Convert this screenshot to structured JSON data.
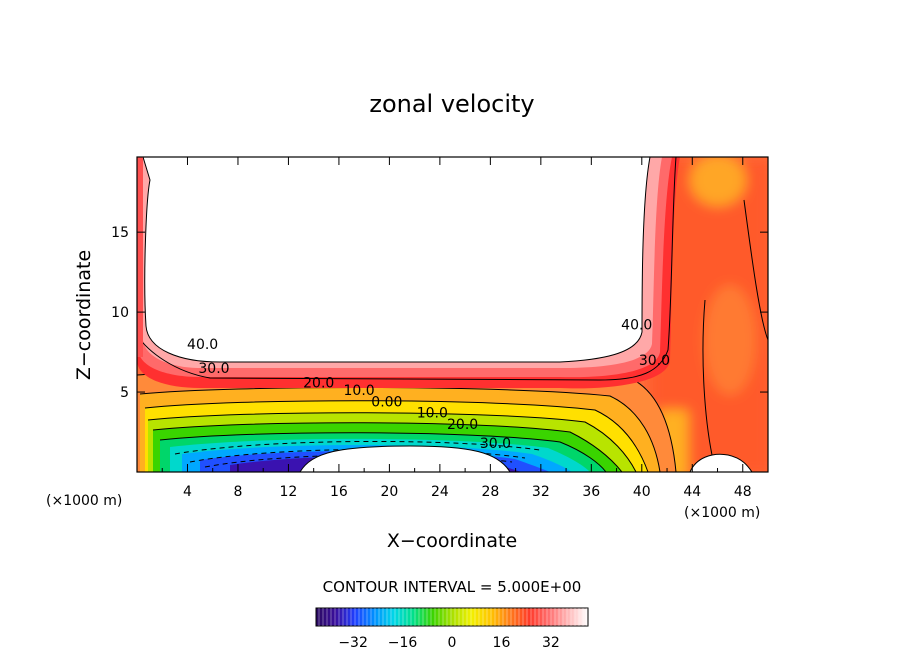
{
  "chart_data": {
    "type": "heatmap",
    "subtype": "filled-contour",
    "title": "zonal velocity",
    "xlabel": "X−coordinate",
    "ylabel": "Z−coordinate",
    "x_units_left": "(×1000 m)",
    "x_units_right": "(×1000 m)",
    "xlim": [
      0,
      50
    ],
    "ylim": [
      0,
      19.7
    ],
    "x_ticks": [
      4,
      8,
      12,
      16,
      20,
      24,
      28,
      32,
      36,
      40,
      44,
      48
    ],
    "y_ticks": [
      5,
      10,
      15
    ],
    "x_tick_labels": [
      "4",
      "8",
      "12",
      "16",
      "20",
      "24",
      "28",
      "32",
      "36",
      "40",
      "44",
      "48"
    ],
    "y_tick_labels": [
      "5",
      "10",
      "15"
    ],
    "contour_interval_text": "CONTOUR INTERVAL = 5.000E+00",
    "contour_interval": 5,
    "contour_labels": [
      {
        "text": "40.0",
        "x": 5.2,
        "y": 7.7
      },
      {
        "text": "30.0",
        "x": 6.1,
        "y": 6.2
      },
      {
        "text": "20.0",
        "x": 14.4,
        "y": 5.3
      },
      {
        "text": "10.0",
        "x": 17.6,
        "y": 4.8
      },
      {
        "text": "0.00",
        "x": 19.8,
        "y": 4.1
      },
      {
        "text": "10.0",
        "x": 23.4,
        "y": 3.4
      },
      {
        "text": "20.0",
        "x": 25.8,
        "y": 2.7
      },
      {
        "text": "30.0",
        "x": 28.4,
        "y": 1.5
      },
      {
        "text": "40.0",
        "x": 39.6,
        "y": 8.9
      },
      {
        "text": "30.0",
        "x": 41.0,
        "y": 6.7
      }
    ],
    "colorbar": {
      "min": -44,
      "max": 44,
      "ticks": [
        -32,
        -16,
        0,
        16,
        32
      ],
      "tick_labels": [
        "−32",
        "−16",
        "0",
        "16",
        "32"
      ],
      "colormap": [
        "#2a0a60",
        "#3a0f9c",
        "#1f3fff",
        "#0090ff",
        "#00d6e8",
        "#00e08a",
        "#3ad400",
        "#a8e000",
        "#f2f000",
        "#ffc400",
        "#ff7a1a",
        "#ff3a2a",
        "#ff7070",
        "#ffb8b8",
        "#ffffff"
      ]
    }
  }
}
